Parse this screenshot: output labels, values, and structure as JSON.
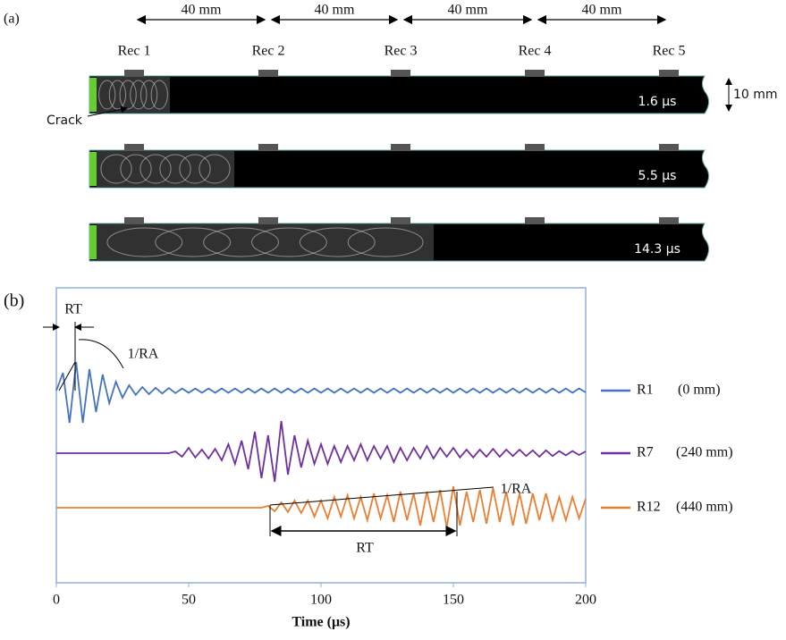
{
  "panel_a": {
    "label": "(a)",
    "spacings": [
      "40 mm",
      "40 mm",
      "40 mm",
      "40 mm"
    ],
    "receivers": [
      "Rec 1",
      "Rec 2",
      "Rec 3",
      "Rec 4",
      "Rec 5"
    ],
    "crack": "Crack",
    "thickness": "10 mm",
    "times": [
      "1.6 μs",
      "5.5 μs",
      "14.3 μs"
    ]
  },
  "chart_data": {
    "type": "line",
    "label": "(b)",
    "xlabel": "Time (μs)",
    "xlim": [
      0,
      200
    ],
    "xticks": [
      0,
      50,
      100,
      150,
      200
    ],
    "annotations": [
      "RT",
      "1/RA",
      "1/RA",
      "RT"
    ],
    "x": [
      0,
      2.5,
      5,
      7.5,
      10,
      12.5,
      15,
      17.5,
      20,
      22.5,
      25,
      27.5,
      30,
      32.5,
      35,
      37.5,
      40,
      42.5,
      45,
      47.5,
      50,
      52.5,
      55,
      57.5,
      60,
      62.5,
      65,
      67.5,
      70,
      72.5,
      75,
      77.5,
      80,
      82.5,
      85,
      87.5,
      90,
      92.5,
      95,
      97.5,
      100,
      102.5,
      105,
      107.5,
      110,
      112.5,
      115,
      117.5,
      120,
      122.5,
      125,
      127.5,
      130,
      132.5,
      135,
      137.5,
      140,
      142.5,
      145,
      147.5,
      150,
      152.5,
      155,
      157.5,
      160,
      162.5,
      165,
      167.5,
      170,
      172.5,
      175,
      177.5,
      180,
      182.5,
      185,
      187.5,
      190,
      192.5,
      195,
      197.5,
      200
    ],
    "series": [
      {
        "name": "R1",
        "label": "(0 mm)",
        "color": "#4472c4",
        "values": [
          0,
          0.5,
          -0.9,
          0.8,
          -0.9,
          0.6,
          -0.6,
          0.45,
          -0.35,
          0.25,
          -0.2,
          0.15,
          -0.12,
          0.1,
          -0.1,
          0.08,
          -0.08,
          0.07,
          -0.07,
          0.06,
          -0.06,
          0.06,
          -0.06,
          0.06,
          -0.06,
          0.06,
          -0.06,
          0.06,
          -0.06,
          0.06,
          -0.06,
          0.06,
          -0.06,
          0.06,
          -0.06,
          0.06,
          -0.06,
          0.06,
          -0.06,
          0.06,
          -0.06,
          0.06,
          -0.06,
          0.06,
          -0.06,
          0.06,
          -0.06,
          0.06,
          -0.06,
          0.06,
          -0.06,
          0.06,
          -0.06,
          0.06,
          -0.06,
          0.06,
          -0.06,
          0.06,
          -0.06,
          0.06,
          -0.06,
          0.06,
          -0.06,
          0.06,
          -0.06,
          0.06,
          -0.06,
          0.06,
          -0.06,
          0.06,
          -0.06,
          0.06,
          -0.06,
          0.06,
          -0.06,
          0.06,
          -0.06,
          0.06,
          -0.06,
          0.06,
          -0.05
        ]
      },
      {
        "name": "R7",
        "label": "(240 mm)",
        "color": "#7030a0",
        "values": [
          0,
          0,
          0,
          0,
          0,
          0,
          0,
          0,
          0,
          0,
          0,
          0,
          0,
          0,
          0,
          0,
          0,
          0,
          0.05,
          -0.1,
          0.15,
          -0.12,
          0.1,
          -0.15,
          0.12,
          -0.2,
          0.25,
          -0.3,
          0.35,
          -0.45,
          0.6,
          -0.7,
          0.5,
          -0.8,
          0.9,
          -0.6,
          0.5,
          -0.4,
          0.35,
          -0.3,
          0.25,
          -0.3,
          0.2,
          -0.25,
          0.2,
          -0.2,
          0.25,
          -0.2,
          0.2,
          -0.15,
          0.2,
          -0.25,
          0.15,
          -0.2,
          0.15,
          -0.15,
          0.2,
          -0.15,
          0.15,
          -0.1,
          0.15,
          -0.12,
          0.1,
          -0.12,
          0.1,
          -0.1,
          0.12,
          -0.1,
          0.1,
          -0.08,
          0.1,
          -0.08,
          0.08,
          -0.1,
          0.08,
          -0.08,
          0.06,
          -0.06,
          0.06,
          -0.05,
          0.05
        ]
      },
      {
        "name": "R12",
        "label": "(440 mm)",
        "color": "#ed7d31",
        "values": [
          0,
          0,
          0,
          0,
          0,
          0,
          0,
          0,
          0,
          0,
          0,
          0,
          0,
          0,
          0,
          0,
          0,
          0,
          0,
          0,
          0,
          0,
          0,
          0,
          0,
          0,
          0,
          0,
          0,
          0,
          0,
          0,
          0.05,
          -0.1,
          0.15,
          -0.12,
          0.2,
          -0.15,
          0.2,
          -0.25,
          0.2,
          -0.3,
          0.3,
          -0.25,
          0.35,
          -0.3,
          0.3,
          -0.35,
          0.4,
          -0.3,
          0.35,
          -0.4,
          0.45,
          -0.35,
          0.4,
          -0.5,
          0.45,
          -0.4,
          0.5,
          -0.55,
          0.6,
          -0.5,
          0.45,
          -0.4,
          0.5,
          -0.45,
          0.55,
          -0.4,
          0.45,
          -0.5,
          0.4,
          -0.45,
          0.4,
          -0.35,
          0.4,
          -0.35,
          0.3,
          -0.35,
          0.3,
          -0.3,
          0.25
        ]
      }
    ]
  }
}
